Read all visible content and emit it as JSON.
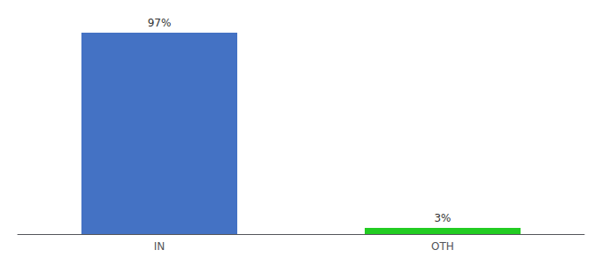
{
  "chart_data": {
    "type": "bar",
    "categories": [
      "IN",
      "OTH"
    ],
    "values": [
      97,
      3
    ],
    "value_labels": [
      "97%",
      "3%"
    ],
    "colors": [
      "#4472c4",
      "#22cc22"
    ],
    "ylim": [
      0,
      100
    ],
    "grid": false,
    "tick_labels": "x",
    "data_labels": true
  }
}
